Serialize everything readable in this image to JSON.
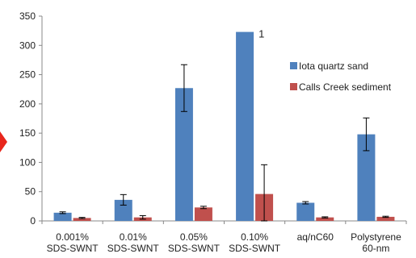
{
  "chart_data": {
    "type": "bar",
    "title": "",
    "xlabel": "",
    "ylabel": "",
    "ylim": [
      0,
      350
    ],
    "yticks": [
      0,
      50,
      100,
      150,
      200,
      250,
      300,
      350
    ],
    "ytick_labels": [
      "0",
      "50",
      "100",
      "150",
      "200",
      "250",
      "300",
      "350"
    ],
    "grid": false,
    "legend_position": "right",
    "categories": [
      [
        "0.001%",
        "SDS-SWNT"
      ],
      [
        "0.01%",
        "SDS-SWNT"
      ],
      [
        "0.05%",
        "SDS-SWNT"
      ],
      [
        "0.10%",
        "SDS-SWNT"
      ],
      [
        "aq/nC60"
      ],
      [
        "Polystyrene",
        "60-nm"
      ]
    ],
    "series": [
      {
        "name": "Iota quartz sand",
        "color": "#4f81bd",
        "values": [
          14,
          36,
          227,
          323,
          31,
          148
        ],
        "error": [
          1.5,
          9,
          40,
          null,
          2,
          28
        ]
      },
      {
        "name": "Calls Creek sediment",
        "color": "#c0504d",
        "values": [
          5,
          6,
          23,
          46,
          6,
          7
        ],
        "error": [
          1,
          3,
          2,
          50,
          1,
          1
        ]
      }
    ],
    "annotations": [
      {
        "text": "1",
        "category_index": 3,
        "series_index": 0
      }
    ],
    "left_marker_color": "#e8261c"
  }
}
